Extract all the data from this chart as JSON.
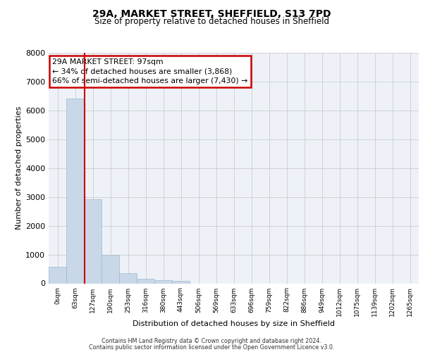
{
  "title_line1": "29A, MARKET STREET, SHEFFIELD, S13 7PD",
  "title_line2": "Size of property relative to detached houses in Sheffield",
  "xlabel": "Distribution of detached houses by size in Sheffield",
  "ylabel": "Number of detached properties",
  "bar_labels": [
    "0sqm",
    "63sqm",
    "127sqm",
    "190sqm",
    "253sqm",
    "316sqm",
    "380sqm",
    "443sqm",
    "506sqm",
    "569sqm",
    "633sqm",
    "696sqm",
    "759sqm",
    "822sqm",
    "886sqm",
    "949sqm",
    "1012sqm",
    "1075sqm",
    "1139sqm",
    "1202sqm",
    "1265sqm"
  ],
  "bar_values": [
    570,
    6400,
    2920,
    990,
    355,
    165,
    100,
    90,
    0,
    0,
    0,
    0,
    0,
    0,
    0,
    0,
    0,
    0,
    0,
    0,
    0
  ],
  "bar_color": "#c8d8e8",
  "bar_edge_color": "#a0b8cc",
  "bg_color": "#eef2f8",
  "grid_color": "#cccccc",
  "property_line_x": 1.55,
  "annotation_title": "29A MARKET STREET: 97sqm",
  "annotation_line1": "← 34% of detached houses are smaller (3,868)",
  "annotation_line2": "66% of semi-detached houses are larger (7,430) →",
  "annotation_box_color": "#cc0000",
  "ylim": [
    0,
    8000
  ],
  "yticks": [
    0,
    1000,
    2000,
    3000,
    4000,
    5000,
    6000,
    7000,
    8000
  ],
  "footer_line1": "Contains HM Land Registry data © Crown copyright and database right 2024.",
  "footer_line2": "Contains public sector information licensed under the Open Government Licence v3.0."
}
